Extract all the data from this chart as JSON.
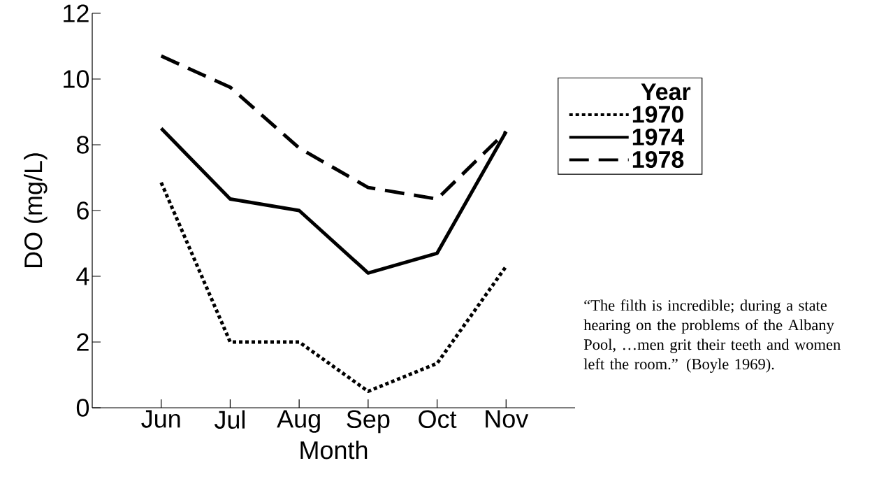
{
  "chart_data": {
    "type": "line",
    "xlabel": "Month",
    "ylabel": "DO (mg/L)",
    "legend_title": "Year",
    "categories": [
      "Jun",
      "Jul",
      "Aug",
      "Sep",
      "Oct",
      "Nov"
    ],
    "series": [
      {
        "name": "1970",
        "color": "#000000",
        "line_style": "dotted",
        "values": [
          6.85,
          2.0,
          2.0,
          0.5,
          1.35,
          4.3
        ]
      },
      {
        "name": "1974",
        "color": "#000000",
        "line_style": "solid",
        "values": [
          8.5,
          6.35,
          6.0,
          4.1,
          4.7,
          8.4
        ]
      },
      {
        "name": "1978",
        "color": "#000000",
        "line_style": "dashed",
        "values": [
          10.7,
          9.75,
          7.9,
          6.7,
          6.35,
          8.4
        ]
      }
    ],
    "ylim": [
      0,
      12
    ],
    "yticks": [
      0,
      2,
      4,
      6,
      8,
      10,
      12
    ],
    "legend": "right",
    "annotations": [
      "“The filth is incredible; during a state hearing on the problems of the Albany Pool, …men grit their teeth and women left the room.” (Boyle 1969)."
    ]
  }
}
